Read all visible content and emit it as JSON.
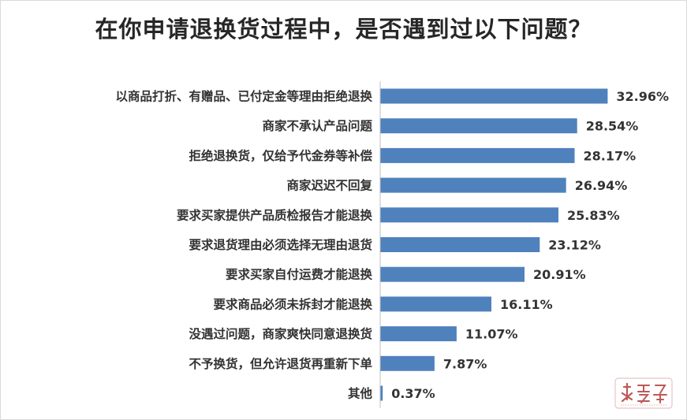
{
  "title": "在你申请退换货过程中，是否遇到过以下问题？",
  "chart_data": {
    "type": "bar",
    "orientation": "horizontal",
    "title": "在你申请退换货过程中，是否遇到过以下问题？",
    "categories": [
      "以商品打折、有赠品、已付定金等理由拒绝退换",
      "商家不承认产品问题",
      "拒绝退换货，仅给予代金券等补偿",
      "商家迟迟不回复",
      "要求买家提供产品质检报告才能退换",
      "要求退货理由必须选择无理由退货",
      "要求买家自付运费才能退换",
      "要求商品必须未拆封才能退换",
      "没遇过问题，商家爽快同意退换货",
      "不予换货，但允许退货再重新下单",
      "其他"
    ],
    "values": [
      32.96,
      28.54,
      28.17,
      26.94,
      25.83,
      23.12,
      20.91,
      16.11,
      11.07,
      7.87,
      0.37
    ],
    "value_labels": [
      "32.96%",
      "28.54%",
      "28.17%",
      "26.94%",
      "25.83%",
      "23.12%",
      "20.91%",
      "16.11%",
      "11.07%",
      "7.87%",
      "0.37%"
    ],
    "xlim": [
      0,
      35
    ],
    "bar_color": "#4f81bd",
    "axis_color": "#bfbfbf",
    "grid": false,
    "legend": "none"
  },
  "colors": {
    "title": "#262626",
    "text": "#333333",
    "watermark": "#b33a3a"
  },
  "watermark_icon": "brand-seal-logo"
}
